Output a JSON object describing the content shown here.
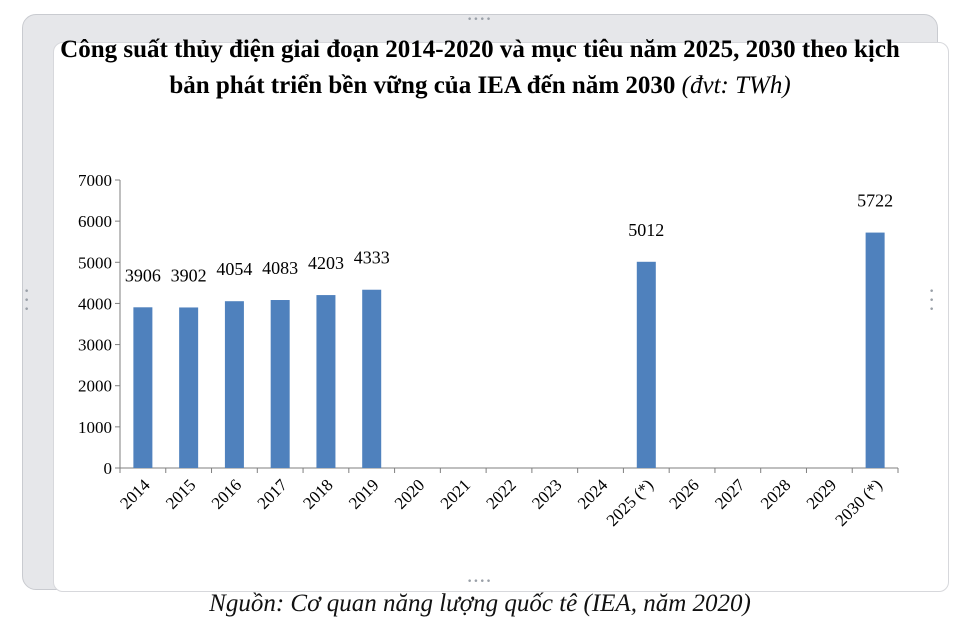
{
  "chart_data": {
    "type": "bar",
    "title_main": "Công suất thủy điện giai đoạn 2014-2020 và mục  tiêu năm 2025, 2030 theo kịch bản phát triển bền vững của IEA đến năm  2030",
    "title_unit": "(đvt: TWh)",
    "categories": [
      "2014",
      "2015",
      "2016",
      "2017",
      "2018",
      "2019",
      "2020",
      "2021",
      "2022",
      "2023",
      "2024",
      "2025 (*)",
      "2026",
      "2027",
      "2028",
      "2029",
      "2030 (*)"
    ],
    "values": [
      3906,
      3902,
      4054,
      4083,
      4203,
      4333,
      null,
      null,
      null,
      null,
      null,
      5012,
      null,
      null,
      null,
      null,
      5722
    ],
    "ylim": [
      0,
      7000
    ],
    "yticks": [
      0,
      1000,
      2000,
      3000,
      4000,
      5000,
      6000,
      7000
    ],
    "xlabel": "",
    "ylabel": "",
    "bar_color": "#4f81bd",
    "grid": false,
    "legend": "none"
  },
  "source": "Nguồn: Cơ quan năng lượng quốc tê (IEA, năm 2020)"
}
